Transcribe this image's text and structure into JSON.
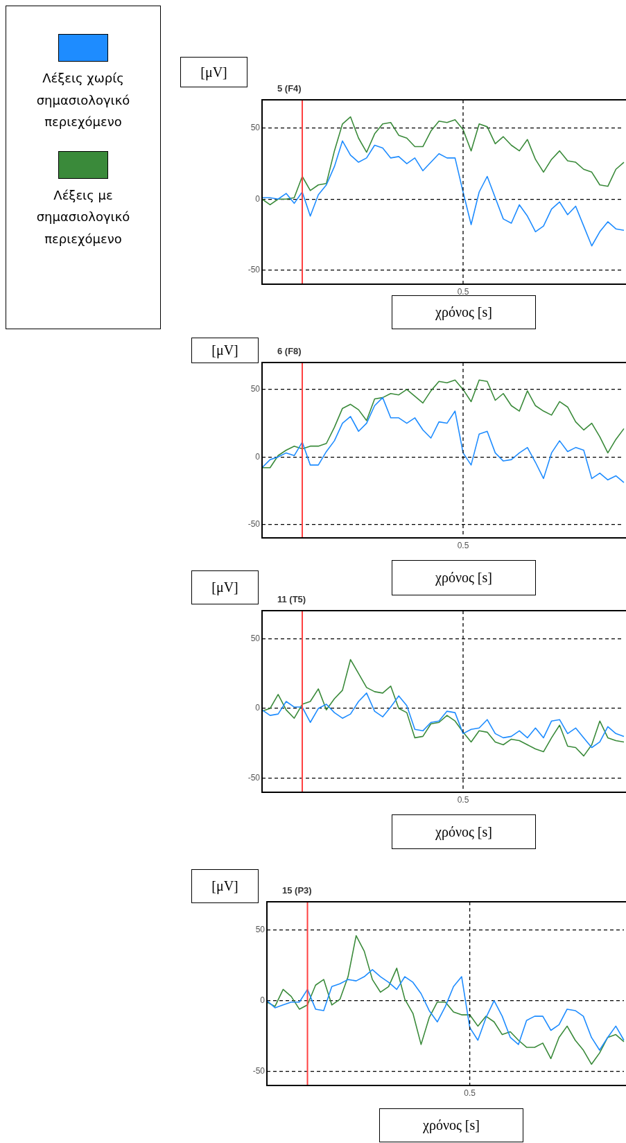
{
  "chart_data": [
    {
      "type": "line",
      "title": "5 (F4)",
      "xlabel": "χρόνος [s]",
      "ylabel": "[μV]",
      "legend": "left",
      "grid": "y",
      "annotations": [
        "0.5"
      ],
      "categories": [
        null,
        null,
        null,
        null,
        null,
        null,
        null,
        null,
        null,
        null,
        null,
        null,
        null,
        null,
        null,
        null,
        null,
        null,
        null,
        null,
        null,
        null,
        null,
        null,
        null,
        null,
        null,
        null,
        null,
        null,
        null,
        null,
        null,
        null,
        null,
        null,
        null,
        null,
        null,
        null,
        null,
        null,
        null,
        null,
        null,
        null
      ],
      "ylim": [
        -60,
        70
      ],
      "yticks": [
        -50,
        0,
        50
      ],
      "series": [
        {
          "name": "Λέξεις χωρίς σημασιολογικό περιεχόμενο",
          "color": "#1e8cff",
          "values": [
            1,
            1,
            0,
            4,
            -3,
            5,
            -12,
            3,
            10,
            23,
            41,
            31,
            26,
            29,
            38,
            36,
            29,
            30,
            25,
            29,
            20,
            26,
            32,
            29,
            29,
            5,
            -18,
            5,
            16,
            1,
            -14,
            -17,
            -4,
            -12,
            -23,
            -19,
            -7,
            -2,
            -11,
            -5,
            -19,
            -33,
            -23,
            -16,
            -21,
            -22
          ]
        },
        {
          "name": "Λέξεις με σημασιολογικό περιεχόμενο",
          "color": "#3a8a3a",
          "values": [
            0,
            -4,
            0,
            0,
            1,
            16,
            6,
            10,
            11,
            34,
            53,
            58,
            43,
            33,
            46,
            53,
            54,
            45,
            43,
            37,
            37,
            48,
            55,
            54,
            56,
            49,
            34,
            53,
            51,
            39,
            44,
            38,
            34,
            42,
            28,
            19,
            28,
            34,
            27,
            26,
            21,
            19,
            10,
            9,
            21,
            26
          ]
        }
      ]
    },
    {
      "type": "line",
      "title": "6 (F8)",
      "xlabel": "χρόνος [s]",
      "ylabel": "[μV]",
      "grid": "y",
      "annotations": [
        "0.5"
      ],
      "categories": [
        null,
        null,
        null,
        null,
        null,
        null,
        null,
        null,
        null,
        null,
        null,
        null,
        null,
        null,
        null,
        null,
        null,
        null,
        null,
        null,
        null,
        null,
        null,
        null,
        null,
        null,
        null,
        null,
        null,
        null,
        null,
        null,
        null,
        null,
        null,
        null,
        null,
        null,
        null,
        null,
        null,
        null,
        null,
        null,
        null,
        null
      ],
      "ylim": [
        -60,
        70
      ],
      "yticks": [
        -50,
        0,
        50
      ],
      "series": [
        {
          "color": "#1e8cff",
          "values": [
            -8,
            -2,
            0,
            3,
            1,
            11,
            -6,
            -6,
            4,
            12,
            25,
            30,
            19,
            25,
            38,
            44,
            29,
            29,
            25,
            29,
            20,
            14,
            26,
            25,
            34,
            3,
            -6,
            17,
            19,
            3,
            -3,
            -2,
            3,
            7,
            -4,
            -16,
            3,
            12,
            4,
            7,
            5,
            -16,
            -12,
            -17,
            -14,
            -19
          ]
        },
        {
          "color": "#3a8a3a",
          "values": [
            -8,
            -8,
            1,
            5,
            8,
            6,
            8,
            8,
            10,
            22,
            36,
            39,
            35,
            27,
            43,
            44,
            47,
            46,
            50,
            45,
            40,
            49,
            56,
            55,
            57,
            50,
            41,
            57,
            56,
            42,
            47,
            38,
            34,
            49,
            38,
            34,
            31,
            41,
            37,
            26,
            20,
            25,
            15,
            3,
            13,
            21
          ]
        }
      ]
    },
    {
      "type": "line",
      "title": "11 (T5)",
      "xlabel": "χρόνος [s]",
      "ylabel": "[μV]",
      "grid": "y",
      "annotations": [
        "0.5"
      ],
      "categories": [
        null,
        null,
        null,
        null,
        null,
        null,
        null,
        null,
        null,
        null,
        null,
        null,
        null,
        null,
        null,
        null,
        null,
        null,
        null,
        null,
        null,
        null,
        null,
        null,
        null,
        null,
        null,
        null,
        null,
        null,
        null,
        null,
        null,
        null,
        null,
        null,
        null,
        null,
        null,
        null,
        null,
        null,
        null,
        null,
        null,
        null
      ],
      "ylim": [
        -60,
        70
      ],
      "yticks": [
        -50,
        0,
        50
      ],
      "series": [
        {
          "color": "#1e8cff",
          "values": [
            -1,
            -5,
            -4,
            5,
            1,
            1,
            -10,
            0,
            3,
            -3,
            -7,
            -4,
            5,
            11,
            -2,
            -6,
            1,
            9,
            2,
            -15,
            -16,
            -10,
            -9,
            -2,
            -3,
            -18,
            -15,
            -14,
            -8,
            -18,
            -21,
            -20,
            -16,
            -21,
            -14,
            -21,
            -9,
            -8,
            -18,
            -14,
            -21,
            -28,
            -24,
            -13,
            -18,
            -20
          ]
        },
        {
          "color": "#3a8a3a",
          "values": [
            -2,
            0,
            10,
            -1,
            -7,
            3,
            5,
            14,
            -1,
            7,
            13,
            35,
            25,
            15,
            12,
            11,
            16,
            0,
            -3,
            -21,
            -20,
            -11,
            -10,
            -5,
            -9,
            -17,
            -24,
            -16,
            -17,
            -24,
            -26,
            -22,
            -23,
            -26,
            -29,
            -31,
            -21,
            -12,
            -27,
            -28,
            -34,
            -26,
            -9,
            -21,
            -23,
            -24
          ]
        }
      ]
    },
    {
      "type": "line",
      "title": "15 (P3)",
      "xlabel": "χρόνος [s]",
      "ylabel": "[μV]",
      "grid": "y",
      "annotations": [
        "0.5"
      ],
      "categories": [
        null,
        null,
        null,
        null,
        null,
        null,
        null,
        null,
        null,
        null,
        null,
        null,
        null,
        null,
        null,
        null,
        null,
        null,
        null,
        null,
        null,
        null,
        null,
        null,
        null,
        null,
        null,
        null,
        null,
        null,
        null,
        null,
        null,
        null,
        null,
        null,
        null,
        null,
        null,
        null,
        null,
        null,
        null,
        null,
        null
      ],
      "ylim": [
        -60,
        70
      ],
      "yticks": [
        -50,
        0,
        50
      ],
      "series": [
        {
          "color": "#1e8cff",
          "values": [
            0,
            -5,
            -3,
            -1,
            -1,
            8,
            -6,
            -7,
            10,
            12,
            15,
            14,
            17,
            22,
            17,
            13,
            8,
            17,
            13,
            5,
            -7,
            -15,
            -4,
            10,
            17,
            -19,
            -28,
            -12,
            0,
            -11,
            -26,
            -31,
            -14,
            -11,
            -11,
            -21,
            -17,
            -6,
            -7,
            -11,
            -26,
            -35,
            -26,
            -18,
            -28
          ]
        },
        {
          "color": "#3a8a3a",
          "values": [
            -1,
            -4,
            8,
            3,
            -6,
            -3,
            11,
            15,
            -3,
            1,
            17,
            46,
            35,
            15,
            6,
            10,
            23,
            1,
            -9,
            -31,
            -12,
            -1,
            -1,
            -8,
            -10,
            -10,
            -18,
            -11,
            -15,
            -24,
            -22,
            -28,
            -33,
            -33,
            -30,
            -41,
            -26,
            -18,
            -28,
            -35,
            -45,
            -37,
            -26,
            -24,
            -29
          ]
        }
      ]
    }
  ]
}
